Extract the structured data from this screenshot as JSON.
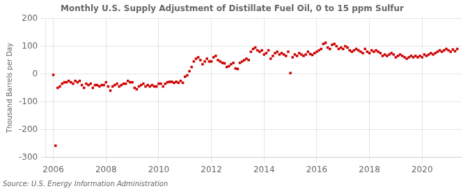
{
  "chart_data": {
    "type": "scatter",
    "title": "Monthly U.S. Supply Adjustment of Distillate Fuel Oil, 0 to 15 ppm Sulfur",
    "ylabel": "Thousand Barrels per Day",
    "annotation": "Source: U.S. Energy Information Administration",
    "color": "#cc0000",
    "marker": "square",
    "grid": true,
    "xlim": [
      2005.7,
      2021.5
    ],
    "ylim": [
      -300,
      200
    ],
    "xticks": [
      2006,
      2008,
      2010,
      2012,
      2014,
      2016,
      2018,
      2020
    ],
    "yticks": [
      -300,
      -200,
      -100,
      0,
      100,
      200
    ],
    "x": [
      2006,
      2006.0833,
      2006.1667,
      2006.25,
      2006.3333,
      2006.4167,
      2006.5,
      2006.5833,
      2006.6667,
      2006.75,
      2006.8333,
      2006.9167,
      2007,
      2007.0833,
      2007.1667,
      2007.25,
      2007.3333,
      2007.4167,
      2007.5,
      2007.5833,
      2007.6667,
      2007.75,
      2007.8333,
      2007.9167,
      2008,
      2008.0833,
      2008.1667,
      2008.25,
      2008.3333,
      2008.4167,
      2008.5,
      2008.5833,
      2008.6667,
      2008.75,
      2008.8333,
      2008.9167,
      2009,
      2009.0833,
      2009.1667,
      2009.25,
      2009.3333,
      2009.4167,
      2009.5,
      2009.5833,
      2009.6667,
      2009.75,
      2009.8333,
      2009.9167,
      2010,
      2010.0833,
      2010.1667,
      2010.25,
      2010.3333,
      2010.4167,
      2010.5,
      2010.5833,
      2010.6667,
      2010.75,
      2010.8333,
      2010.9167,
      2011,
      2011.0833,
      2011.1667,
      2011.25,
      2011.3333,
      2011.4167,
      2011.5,
      2011.5833,
      2011.6667,
      2011.75,
      2011.8333,
      2011.9167,
      2012,
      2012.0833,
      2012.1667,
      2012.25,
      2012.3333,
      2012.4167,
      2012.5,
      2012.5833,
      2012.6667,
      2012.75,
      2012.8333,
      2012.9167,
      2013,
      2013.0833,
      2013.1667,
      2013.25,
      2013.3333,
      2013.4167,
      2013.5,
      2013.5833,
      2013.6667,
      2013.75,
      2013.8333,
      2013.9167,
      2014,
      2014.0833,
      2014.1667,
      2014.25,
      2014.3333,
      2014.4167,
      2014.5,
      2014.5833,
      2014.6667,
      2014.75,
      2014.8333,
      2014.9167,
      2015,
      2015.0833,
      2015.1667,
      2015.25,
      2015.3333,
      2015.4167,
      2015.5,
      2015.5833,
      2015.6667,
      2015.75,
      2015.8333,
      2015.9167,
      2016,
      2016.0833,
      2016.1667,
      2016.25,
      2016.3333,
      2016.4167,
      2016.5,
      2016.5833,
      2016.6667,
      2016.75,
      2016.8333,
      2016.9167,
      2017,
      2017.0833,
      2017.1667,
      2017.25,
      2017.3333,
      2017.4167,
      2017.5,
      2017.5833,
      2017.6667,
      2017.75,
      2017.8333,
      2017.9167,
      2018,
      2018.0833,
      2018.1667,
      2018.25,
      2018.3333,
      2018.4167,
      2018.5,
      2018.5833,
      2018.6667,
      2018.75,
      2018.8333,
      2018.9167,
      2019,
      2019.0833,
      2019.1667,
      2019.25,
      2019.3333,
      2019.4167,
      2019.5,
      2019.5833,
      2019.6667,
      2019.75,
      2019.8333,
      2019.9167,
      2020,
      2020.0833,
      2020.1667,
      2020.25,
      2020.3333,
      2020.4167,
      2020.5,
      2020.5833,
      2020.6667,
      2020.75,
      2020.8333,
      2020.9167,
      2021,
      2021.0833,
      2021.1667,
      2021.25,
      2021.3333
    ],
    "values": [
      -3,
      -258,
      -50,
      -45,
      -35,
      -30,
      -30,
      -25,
      -30,
      -35,
      -25,
      -30,
      -25,
      -40,
      -50,
      -35,
      -40,
      -35,
      -50,
      -40,
      -40,
      -45,
      -40,
      -40,
      -30,
      -45,
      -60,
      -45,
      -40,
      -35,
      -45,
      -40,
      -35,
      -35,
      -25,
      -30,
      -30,
      -50,
      -55,
      -45,
      -40,
      -35,
      -45,
      -40,
      -45,
      -40,
      -45,
      -45,
      -35,
      -35,
      -45,
      -35,
      -30,
      -28,
      -28,
      -32,
      -28,
      -32,
      -25,
      -32,
      -10,
      -5,
      10,
      25,
      45,
      55,
      60,
      50,
      35,
      45,
      55,
      45,
      45,
      60,
      65,
      50,
      45,
      40,
      38,
      25,
      28,
      35,
      40,
      20,
      18,
      40,
      45,
      50,
      55,
      50,
      80,
      90,
      95,
      85,
      80,
      85,
      70,
      75,
      85,
      55,
      65,
      75,
      80,
      70,
      75,
      70,
      65,
      80,
      3,
      60,
      70,
      65,
      75,
      70,
      65,
      70,
      80,
      72,
      68,
      75,
      80,
      85,
      90,
      108,
      112,
      95,
      90,
      105,
      108,
      100,
      90,
      95,
      90,
      100,
      95,
      85,
      80,
      85,
      90,
      85,
      80,
      75,
      90,
      80,
      75,
      85,
      80,
      85,
      80,
      75,
      65,
      70,
      65,
      70,
      75,
      70,
      60,
      65,
      70,
      65,
      60,
      55,
      60,
      65,
      60,
      65,
      60,
      65,
      60,
      70,
      65,
      70,
      75,
      70,
      75,
      80,
      85,
      80,
      85,
      90,
      85,
      80,
      88,
      82,
      90
    ]
  }
}
